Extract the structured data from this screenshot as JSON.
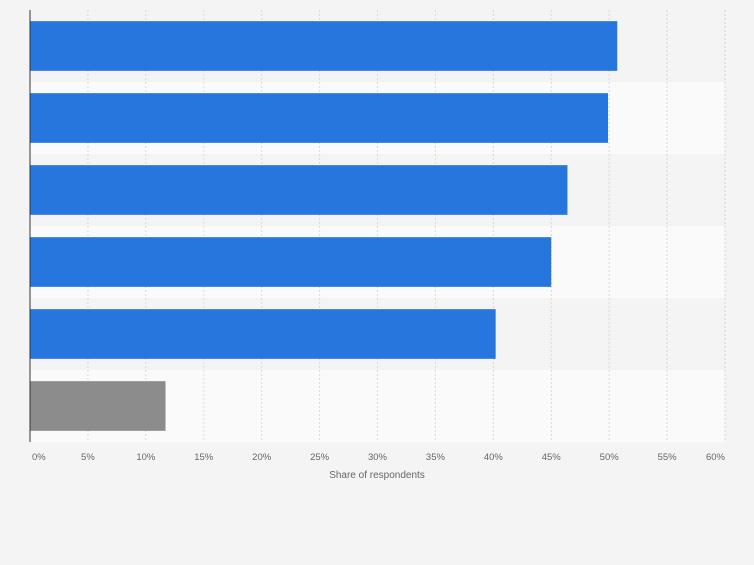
{
  "chart_data": {
    "type": "bar",
    "orientation": "horizontal",
    "categories": [
      "",
      "",
      "",
      "",
      "",
      ""
    ],
    "values": [
      50.7,
      49.9,
      46.4,
      45.0,
      40.2,
      11.7
    ],
    "bar_colors": [
      "#2776dd",
      "#2776dd",
      "#2776dd",
      "#2776dd",
      "#2776dd",
      "#8c8c8c"
    ],
    "xlabel": "Share of respondents",
    "ylabel": "",
    "xlim": [
      0,
      60
    ],
    "xticks": [
      "0%",
      "5%",
      "10%",
      "15%",
      "20%",
      "25%",
      "30%",
      "35%",
      "40%",
      "45%",
      "50%",
      "55%",
      "60%"
    ],
    "grid": true,
    "legend": "none"
  },
  "colors": {
    "background": "#f4f4f4",
    "band_alt": "#fafafa",
    "grid": "#d9d9d9",
    "axis": "#333333",
    "tick_text": "#666666"
  }
}
